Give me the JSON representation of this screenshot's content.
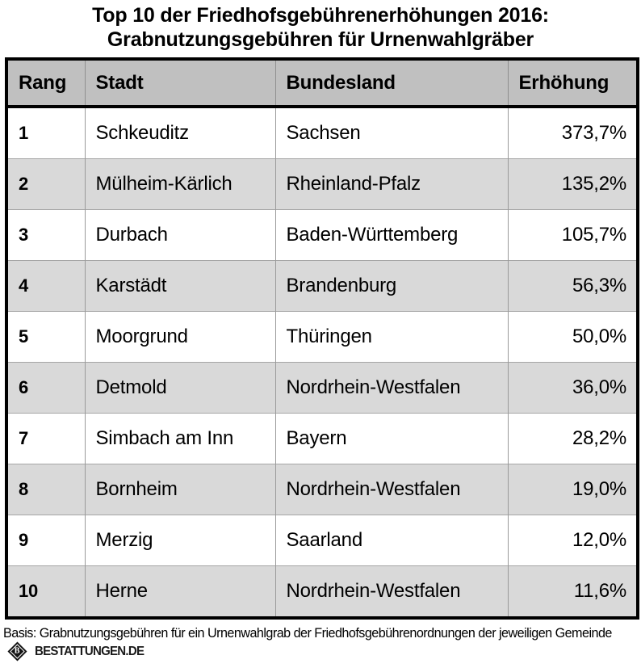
{
  "title": {
    "line1": "Top 10 der Friedhofsgebührenerhöhungen 2016:",
    "line2": "Grabnutzungsgebühren für Urnenwahlgräber"
  },
  "table": {
    "columns": [
      "Rang",
      "Stadt",
      "Bundesland",
      "Erhöhung"
    ],
    "rows": [
      {
        "rang": "1",
        "stadt": "Schkeuditz",
        "bundesland": "Sachsen",
        "erhoehung": "373,7%"
      },
      {
        "rang": "2",
        "stadt": "Mülheim-Kärlich",
        "bundesland": "Rheinland-Pfalz",
        "erhoehung": "135,2%"
      },
      {
        "rang": "3",
        "stadt": "Durbach",
        "bundesland": "Baden-Württemberg",
        "erhoehung": "105,7%"
      },
      {
        "rang": "4",
        "stadt": "Karstädt",
        "bundesland": "Brandenburg",
        "erhoehung": "56,3%"
      },
      {
        "rang": "5",
        "stadt": "Moorgrund",
        "bundesland": "Thüringen",
        "erhoehung": "50,0%"
      },
      {
        "rang": "6",
        "stadt": "Detmold",
        "bundesland": "Nordrhein-Westfalen",
        "erhoehung": "36,0%"
      },
      {
        "rang": "7",
        "stadt": "Simbach am Inn",
        "bundesland": "Bayern",
        "erhoehung": "28,2%"
      },
      {
        "rang": "8",
        "stadt": "Bornheim",
        "bundesland": "Nordrhein-Westfalen",
        "erhoehung": "19,0%"
      },
      {
        "rang": "9",
        "stadt": "Merzig",
        "bundesland": "Saarland",
        "erhoehung": "12,0%"
      },
      {
        "rang": "10",
        "stadt": "Herne",
        "bundesland": "Nordrhein-Westfalen",
        "erhoehung": "11,6%"
      }
    ]
  },
  "footer": {
    "basis": "Basis: Grabnutzungsgebühren für ein Urnenwahlgrab der Friedhofsgebührenordnungen der jeweiligen Gemeinde",
    "brand": "BESTATTUNGEN.DE",
    "logo_letter": "B"
  },
  "colors": {
    "header_bg": "#c0c0c0",
    "row_alt_bg": "#d9d9d9",
    "row_bg": "#ffffff",
    "outer_border": "#000000",
    "grid_line": "#9a9a9a"
  },
  "chart_data": {
    "type": "table",
    "title": "Top 10 der Friedhofsgebührenerhöhungen 2016: Grabnutzungsgebühren für Urnenwahlgräber",
    "columns": [
      "Rang",
      "Stadt",
      "Bundesland",
      "Erhöhung"
    ],
    "rows": [
      [
        1,
        "Schkeuditz",
        "Sachsen",
        "373,7%"
      ],
      [
        2,
        "Mülheim-Kärlich",
        "Rheinland-Pfalz",
        "135,2%"
      ],
      [
        3,
        "Durbach",
        "Baden-Württemberg",
        "105,7%"
      ],
      [
        4,
        "Karstädt",
        "Brandenburg",
        "56,3%"
      ],
      [
        5,
        "Moorgrund",
        "Thüringen",
        "50,0%"
      ],
      [
        6,
        "Detmold",
        "Nordrhein-Westfalen",
        "36,0%"
      ],
      [
        7,
        "Simbach am Inn",
        "Bayern",
        "28,2%"
      ],
      [
        8,
        "Bornheim",
        "Nordrhein-Westfalen",
        "19,0%"
      ],
      [
        9,
        "Merzig",
        "Saarland",
        "12,0%"
      ],
      [
        10,
        "Herne",
        "Nordrhein-Westfalen",
        "11,6%"
      ]
    ],
    "values_percent": [
      373.7,
      135.2,
      105.7,
      56.3,
      50.0,
      36.0,
      28.2,
      19.0,
      12.0,
      11.6
    ],
    "annotation": "Basis: Grabnutzungsgebühren für ein Urnenwahlgrab der Friedhofsgebührenordnungen der jeweiligen Gemeinde",
    "source_brand": "BESTATTUNGEN.DE"
  }
}
